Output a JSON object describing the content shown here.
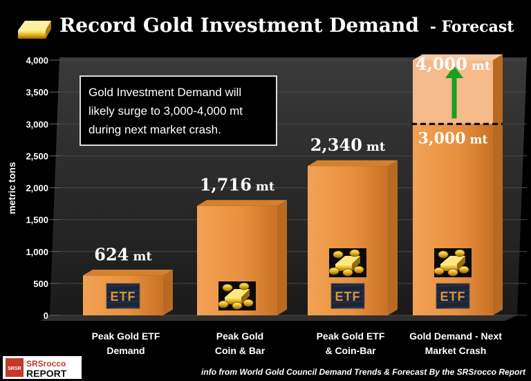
{
  "title": "Record Gold Investment Demand",
  "title_suffix": "- Forecast",
  "annotation_lines": [
    "Gold Investment Demand will",
    "likely surge to 3,000-4,000 mt",
    "during next market crash."
  ],
  "footer": "info from World Gold Council Demand Trends & Forecast By the SRSrocco Report",
  "logo": {
    "line1": "SRSrocco",
    "line2": "REPORT",
    "badge": "SRSR"
  },
  "icon_label": "ETF",
  "colors": {
    "bar": "#e8913f",
    "bar_top": "#d4802f",
    "bar_upper": "#f5b98a",
    "arrow": "#18a020",
    "plot_bg": "#262626"
  },
  "chart_data": {
    "type": "bar",
    "title": "Record Gold Investment Demand - Forecast",
    "ylabel": "metric tons",
    "ylim": [
      0,
      4000
    ],
    "yticks": [
      "0",
      "500",
      "1,000",
      "1,500",
      "2,000",
      "2,500",
      "3,000",
      "3,500",
      "4,000"
    ],
    "categories": [
      [
        "Peak Gold ETF",
        "Demand"
      ],
      [
        "Peak Gold",
        "Coin & Bar"
      ],
      [
        "Peak Gold ETF",
        "& Coin-Bar"
      ],
      [
        "Gold Demand - Next",
        "Market Crash"
      ]
    ],
    "values": [
      624,
      1716,
      2340,
      4000
    ],
    "forecast_low": 3000,
    "data_labels": [
      {
        "num": "624",
        "unit": "mt"
      },
      {
        "num": "1,716",
        "unit": "mt"
      },
      {
        "num": "2,340",
        "unit": "mt"
      },
      {
        "num": "4,000",
        "unit": "mt"
      }
    ],
    "extra_label": {
      "num": "3,000",
      "unit": "mt"
    },
    "bar_icons": [
      [
        "etf"
      ],
      [
        "gold"
      ],
      [
        "gold",
        "etf"
      ],
      [
        "gold",
        "etf"
      ]
    ],
    "grid": true
  }
}
